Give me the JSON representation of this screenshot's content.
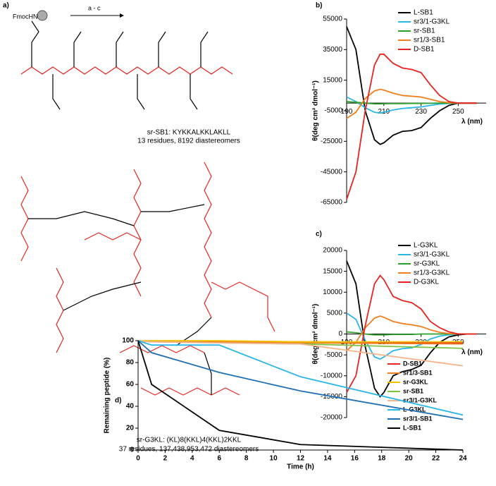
{
  "panel_labels": [
    "a)",
    "b)",
    "c)",
    "d)"
  ],
  "figure_a": {
    "start": "FmocHN",
    "step": "a - c",
    "caption_1": "sr-SB1: KYKKALKKLAKLL",
    "caption_1_sub": "13 residues, 8192 diastereomers",
    "caption_2": "sr-G3KL: (KL)8(KKL)4(KKL)2KKL",
    "caption_2_sub": "37 residues, 137,438,953,472 diastereomers"
  },
  "chart_data": [
    {
      "type": "line",
      "ylabel": "θ(deg cm² dmol⁻¹)",
      "xlabel": "λ (nm)",
      "x": [
        190,
        195,
        200,
        205,
        208,
        210,
        215,
        220,
        225,
        230,
        235,
        240,
        245,
        250,
        255,
        260
      ],
      "xlim": [
        190,
        265
      ],
      "xticks": [
        190,
        210,
        230,
        250
      ],
      "ylim": [
        -65000,
        55000
      ],
      "yticks": [
        55000,
        35000,
        15000,
        -5000,
        -25000,
        -45000,
        -65000
      ],
      "legend": "upper right",
      "series": [
        {
          "name": "L-SB1",
          "color": "#000000",
          "values": [
            50000,
            35000,
            -5000,
            -24000,
            -27000,
            -26000,
            -21000,
            -18500,
            -18000,
            -16000,
            -10000,
            -5000,
            -1500,
            0,
            0,
            0
          ]
        },
        {
          "name": "sr3/1-G3KL",
          "color": "#29b6e8",
          "values": [
            4000,
            1000,
            -3000,
            -6000,
            -6500,
            -6000,
            -4500,
            -3500,
            -3000,
            -2500,
            -1500,
            -600,
            -200,
            0,
            0,
            0
          ]
        },
        {
          "name": "sr-SB1",
          "color": "#2ca02c",
          "values": [
            1000,
            500,
            0,
            -500,
            -500,
            -400,
            -300,
            -300,
            -200,
            -200,
            -100,
            0,
            0,
            0,
            0,
            0
          ]
        },
        {
          "name": "sr1/3-SB1",
          "color": "#f07f1e",
          "values": [
            -10000,
            -6000,
            3000,
            8000,
            9000,
            8500,
            6500,
            5000,
            4500,
            4000,
            2500,
            1000,
            300,
            0,
            0,
            0
          ]
        },
        {
          "name": "D-SB1",
          "color": "#e8231f",
          "values": [
            -63000,
            -45000,
            -5000,
            25000,
            32000,
            32000,
            26000,
            23000,
            22000,
            20000,
            12000,
            5000,
            1000,
            0,
            0,
            0
          ]
        }
      ]
    },
    {
      "type": "line",
      "ylabel": "θ(deg cm² dmol⁻¹)",
      "xlabel": "λ (nm)",
      "x": [
        190,
        195,
        200,
        205,
        208,
        210,
        215,
        220,
        225,
        230,
        235,
        240,
        245,
        250,
        255,
        260
      ],
      "xlim": [
        190,
        265
      ],
      "xticks": [
        190,
        210,
        230,
        250
      ],
      "ylim": [
        -20000,
        20000
      ],
      "yticks": [
        20000,
        15000,
        10000,
        5000,
        0,
        -5000,
        -10000,
        -15000,
        -20000
      ],
      "legend": "upper right",
      "series": [
        {
          "name": "L-G3KL",
          "color": "#000000",
          "values": [
            17500,
            12000,
            -3000,
            -13000,
            -15000,
            -14000,
            -10000,
            -9000,
            -8500,
            -7500,
            -4500,
            -2000,
            -700,
            -200,
            0,
            0
          ]
        },
        {
          "name": "sr3/1-G3KL",
          "color": "#29b6e8",
          "values": [
            5000,
            3500,
            -1500,
            -5500,
            -6000,
            -5500,
            -4000,
            -3500,
            -3300,
            -2500,
            -1200,
            -500,
            -200,
            0,
            0,
            0
          ]
        },
        {
          "name": "sr-G3KL",
          "color": "#2ca02c",
          "values": [
            500,
            300,
            0,
            -200,
            -200,
            -200,
            -100,
            -100,
            -100,
            0,
            0,
            0,
            0,
            0,
            0,
            0
          ]
        },
        {
          "name": "sr1/3-G3KL",
          "color": "#f07f1e",
          "values": [
            -4000,
            -2000,
            1500,
            3800,
            4300,
            4000,
            3000,
            2500,
            2200,
            1800,
            1000,
            400,
            100,
            0,
            0,
            0
          ]
        },
        {
          "name": "D-G3KL",
          "color": "#e8231f",
          "values": [
            -14000,
            -10000,
            2000,
            12000,
            14000,
            13000,
            9000,
            8000,
            7500,
            6000,
            3000,
            1500,
            500,
            0,
            0,
            0
          ]
        }
      ]
    },
    {
      "type": "line",
      "ylabel": "Remaining peptide (%)",
      "xlabel": "Time (h)",
      "x": [
        0,
        1,
        6,
        12,
        24
      ],
      "xlim": [
        0,
        24
      ],
      "xticks": [
        0,
        2,
        4,
        6,
        8,
        10,
        12,
        14,
        16,
        18,
        20,
        22,
        24
      ],
      "ylim": [
        0,
        100
      ],
      "yticks": [
        0,
        20,
        40,
        60,
        80,
        100
      ],
      "legend": "right",
      "series": [
        {
          "name": "D-SB1",
          "color": "#e8231f",
          "values": [
            100,
            99,
            99,
            99,
            98
          ]
        },
        {
          "name": "sr1/3-SB1",
          "color": "#f07f1e",
          "values": [
            100,
            99,
            99,
            98,
            97
          ]
        },
        {
          "name": "sr-G3KL",
          "color": "#f2c300",
          "values": [
            100,
            100,
            100,
            99,
            99
          ]
        },
        {
          "name": "sr-SB1",
          "color": "#7cc242",
          "values": [
            100,
            99,
            98,
            97,
            93
          ]
        },
        {
          "name": "sr3/1-G3KL",
          "color": "#f5b58a",
          "values": [
            100,
            99,
            98,
            97,
            77
          ]
        },
        {
          "name": "L-G3KL",
          "color": "#29b6e8",
          "values": [
            100,
            96,
            96,
            67,
            32
          ]
        },
        {
          "name": "sr3/1-SB1",
          "color": "#1f6fb4",
          "values": [
            100,
            89,
            71,
            54,
            28
          ]
        },
        {
          "name": "L-SB1",
          "color": "#000000",
          "values": [
            100,
            60,
            18,
            5,
            0
          ]
        }
      ]
    }
  ]
}
